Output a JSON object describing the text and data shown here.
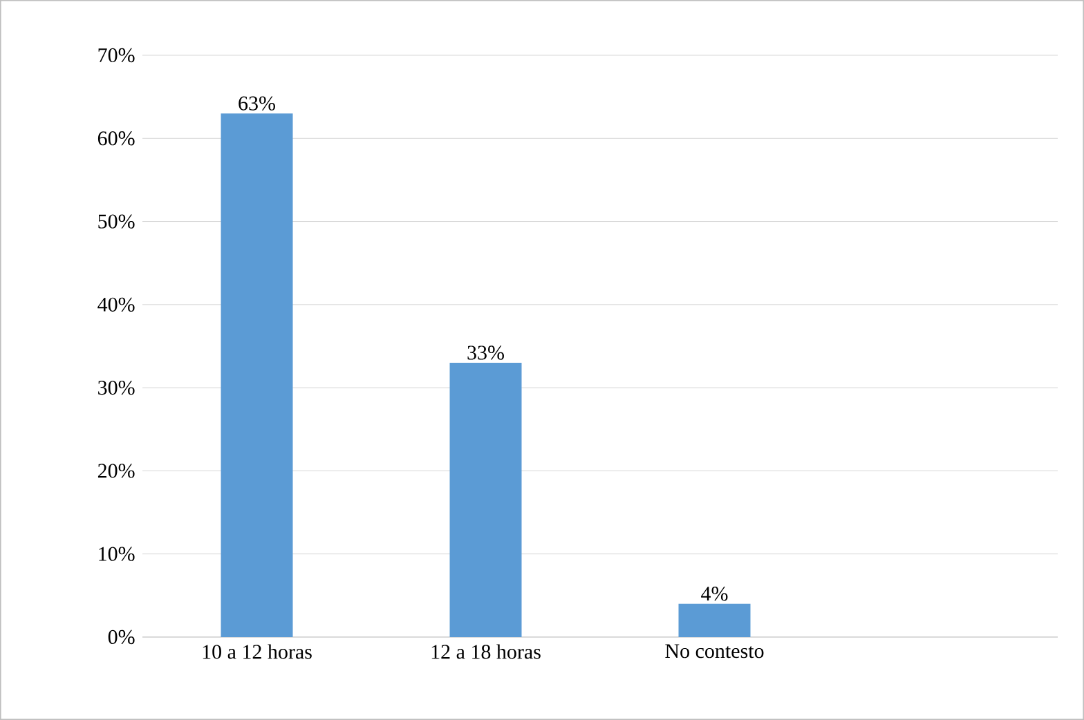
{
  "chart_data": {
    "type": "bar",
    "categories": [
      "10 a 12 horas",
      "12 a 18 horas",
      "No contesto",
      null
    ],
    "values": [
      63,
      33,
      4,
      null
    ],
    "value_labels": [
      "63%",
      "33%",
      "4%",
      null
    ],
    "color": "#5b9bd5",
    "ylim": [
      0,
      70
    ],
    "yticks": [
      {
        "value": 0,
        "label": "0%"
      },
      {
        "value": 10,
        "label": "10%"
      },
      {
        "value": 20,
        "label": "20%"
      },
      {
        "value": 30,
        "label": "30%"
      },
      {
        "value": 40,
        "label": "40%"
      },
      {
        "value": 50,
        "label": "50%"
      },
      {
        "value": 60,
        "label": "60%"
      },
      {
        "value": 70,
        "label": "70%"
      }
    ],
    "grid": "y"
  }
}
